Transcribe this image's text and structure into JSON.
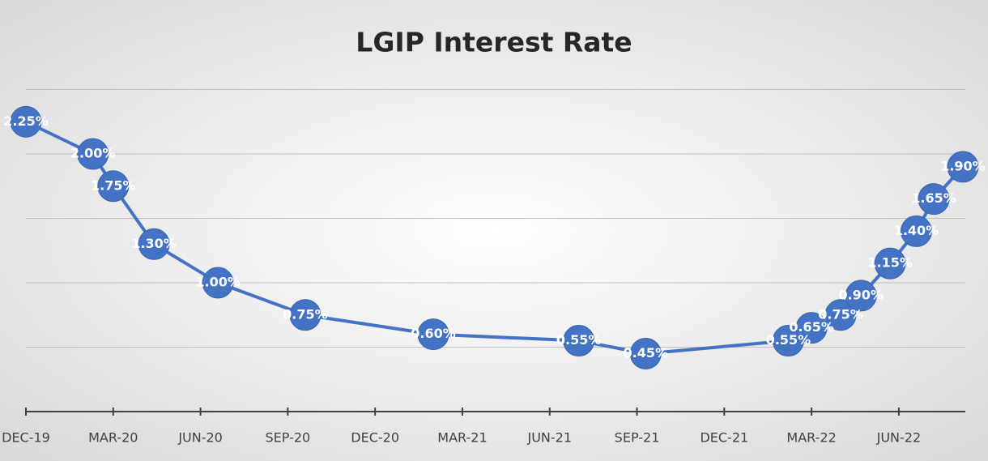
{
  "chart_data": {
    "type": "line",
    "title": "LGIP Interest Rate",
    "x": [
      0,
      2.3,
      3,
      4.4,
      6.6,
      9.6,
      14,
      19,
      21.3,
      26.2,
      27,
      28,
      28.7,
      29.7,
      30.6,
      31.2,
      32.2
    ],
    "series": [
      {
        "name": "LGIP Interest Rate",
        "color": "#4472c4",
        "values": [
          2.25,
          2.0,
          1.75,
          1.3,
          1.0,
          0.75,
          0.6,
          0.55,
          0.45,
          0.55,
          0.65,
          0.75,
          0.9,
          1.15,
          1.4,
          1.65,
          1.9
        ],
        "value_labels": [
          "2.25%",
          "2.00%",
          "1.75%",
          "1.30%",
          "1.00%",
          "0.75%",
          "0.60%",
          "0.55%",
          "0.45%",
          "0.55%",
          "0.65%",
          "0.75%",
          "0.90%",
          "1.15%",
          "1.40%",
          "1.65%",
          "1.90%"
        ]
      }
    ],
    "xlim": [
      0,
      32.2
    ],
    "xticks": [
      {
        "value": 0,
        "label": "DEC-19"
      },
      {
        "value": 3,
        "label": "MAR-20"
      },
      {
        "value": 6,
        "label": "JUN-20"
      },
      {
        "value": 9,
        "label": "SEP-20"
      },
      {
        "value": 12,
        "label": "DEC-20"
      },
      {
        "value": 15,
        "label": "MAR-21"
      },
      {
        "value": 18,
        "label": "JUN-21"
      },
      {
        "value": 21,
        "label": "SEP-21"
      },
      {
        "value": 24,
        "label": "DEC-21"
      },
      {
        "value": 27,
        "label": "MAR-22"
      },
      {
        "value": 30,
        "label": "JUN-22"
      }
    ],
    "ylim": [
      0,
      2.5
    ],
    "yticks": [
      0,
      0.5,
      1,
      1.5,
      2,
      2.5
    ],
    "grid": true
  }
}
